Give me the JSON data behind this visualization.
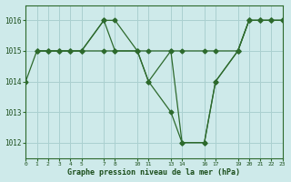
{
  "series": [
    {
      "x": [
        0,
        1,
        2,
        3,
        4,
        5,
        7,
        8,
        10,
        11,
        13,
        14,
        16,
        17,
        19,
        20,
        21,
        22,
        23
      ],
      "y": [
        1014.0,
        1015.0,
        1015.0,
        1015.0,
        1015.0,
        1015.0,
        1016.0,
        1016.0,
        1015.0,
        1014.0,
        1013.0,
        1012.0,
        1012.0,
        1014.0,
        1015.0,
        1016.0,
        1016.0,
        1016.0,
        1016.0
      ]
    },
    {
      "x": [
        1,
        2,
        3,
        4,
        5,
        7,
        8,
        10,
        11,
        13,
        14,
        16,
        17,
        19,
        20,
        21,
        22,
        23
      ],
      "y": [
        1015.0,
        1015.0,
        1015.0,
        1015.0,
        1015.0,
        1015.0,
        1015.0,
        1015.0,
        1015.0,
        1015.0,
        1015.0,
        1015.0,
        1015.0,
        1015.0,
        1016.0,
        1016.0,
        1016.0,
        1016.0
      ]
    },
    {
      "x": [
        1,
        2,
        3,
        4,
        5,
        7,
        8,
        10,
        11,
        13,
        14,
        16,
        17,
        19,
        20,
        21,
        22,
        23
      ],
      "y": [
        1015.0,
        1015.0,
        1015.0,
        1015.0,
        1015.0,
        1016.0,
        1015.0,
        1015.0,
        1014.0,
        1015.0,
        1012.0,
        1012.0,
        1014.0,
        1015.0,
        1016.0,
        1016.0,
        1016.0,
        1016.0
      ]
    }
  ],
  "xlim": [
    0,
    23
  ],
  "ylim": [
    1011.5,
    1016.5
  ],
  "yticks": [
    1012,
    1013,
    1014,
    1015,
    1016
  ],
  "xtick_positions": [
    0,
    1,
    2,
    3,
    4,
    5,
    7,
    8,
    10,
    11,
    13,
    14,
    16,
    17,
    19,
    20,
    21,
    22,
    23
  ],
  "xtick_labels": [
    "0",
    "1",
    "2",
    "3",
    "4",
    "5",
    "7",
    "8",
    "10",
    "11",
    "13",
    "14",
    "16",
    "17",
    "19",
    "20",
    "21",
    "22",
    "23"
  ],
  "xlabel": "Graphe pression niveau de la mer (hPa)",
  "bg_color": "#ceeaea",
  "grid_color": "#aad0d0",
  "line_color": "#2d6a2d",
  "text_color": "#1a4d1a",
  "marker": "D",
  "markersize": 2.5,
  "linewidth": 0.9
}
